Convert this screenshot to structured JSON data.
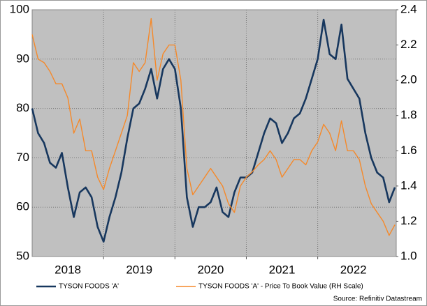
{
  "chart_data": {
    "type": "line",
    "xlim": [
      2018,
      2023.1
    ],
    "xticks": [
      {
        "value": 2018.5,
        "label": "2018"
      },
      {
        "value": 2019.5,
        "label": "2019"
      },
      {
        "value": 2020.5,
        "label": "2020"
      },
      {
        "value": 2021.5,
        "label": "2021"
      },
      {
        "value": 2022.5,
        "label": "2022"
      }
    ],
    "xgrid": [
      2019,
      2020,
      2021,
      2022
    ],
    "ylim": [
      50,
      100
    ],
    "yticks": [
      50,
      60,
      70,
      80,
      90,
      100
    ],
    "y2lim": [
      1,
      2.4
    ],
    "y2ticks": [
      {
        "value": 1,
        "label": "1.0"
      },
      1.2,
      1.4,
      1.6,
      1.8,
      {
        "value": 2,
        "label": "2.0"
      },
      2.2,
      2.4
    ],
    "grid": true,
    "legend": "bottom",
    "source": "Source: Refinitiv Datastream",
    "x": [
      2018,
      2018.083,
      2018.167,
      2018.25,
      2018.333,
      2018.417,
      2018.5,
      2018.583,
      2018.667,
      2018.75,
      2018.833,
      2018.917,
      2019,
      2019.083,
      2019.167,
      2019.25,
      2019.333,
      2019.417,
      2019.5,
      2019.583,
      2019.667,
      2019.75,
      2019.833,
      2019.917,
      2020,
      2020.083,
      2020.167,
      2020.25,
      2020.333,
      2020.417,
      2020.5,
      2020.583,
      2020.667,
      2020.75,
      2020.833,
      2020.917,
      2021,
      2021.083,
      2021.167,
      2021.25,
      2021.333,
      2021.417,
      2021.5,
      2021.583,
      2021.667,
      2021.75,
      2021.833,
      2021.917,
      2022,
      2022.083,
      2022.167,
      2022.25,
      2022.333,
      2022.417,
      2022.5,
      2022.583,
      2022.667,
      2022.75,
      2022.833,
      2022.917,
      2023,
      2023.08
    ],
    "series": [
      {
        "name": "TYSON FOODS 'A'",
        "color": "#17375e",
        "values": [
          80,
          75,
          73,
          69,
          68,
          71,
          64,
          58,
          63,
          64,
          62,
          56,
          53,
          58,
          62,
          67,
          74,
          80,
          81,
          84,
          88,
          82,
          88,
          90,
          88,
          80,
          62,
          56,
          60,
          60,
          61,
          64,
          59,
          58,
          63,
          66,
          66,
          67,
          71,
          75,
          78,
          77,
          73,
          75,
          78,
          79,
          82,
          86,
          90,
          98,
          91,
          90,
          97,
          86,
          84,
          82,
          75,
          70,
          67,
          66,
          61,
          64
        ]
      },
      {
        "name": "TYSON FOODS 'A' - Price To Book Value (RH Scale)",
        "color": "#f5892a",
        "axis": "y2",
        "values": [
          2.26,
          2.12,
          2.1,
          2.05,
          1.98,
          1.98,
          1.9,
          1.7,
          1.78,
          1.6,
          1.6,
          1.45,
          1.38,
          1.5,
          1.6,
          1.7,
          1.8,
          2.1,
          2.05,
          2.1,
          2.35,
          2.0,
          2.15,
          2.2,
          2.2,
          2.0,
          1.5,
          1.35,
          1.4,
          1.45,
          1.5,
          1.45,
          1.4,
          1.3,
          1.25,
          1.4,
          1.45,
          1.48,
          1.52,
          1.55,
          1.6,
          1.55,
          1.45,
          1.5,
          1.55,
          1.55,
          1.52,
          1.6,
          1.65,
          1.75,
          1.7,
          1.6,
          1.77,
          1.6,
          1.6,
          1.55,
          1.4,
          1.3,
          1.25,
          1.2,
          1.12,
          1.18
        ]
      }
    ]
  }
}
